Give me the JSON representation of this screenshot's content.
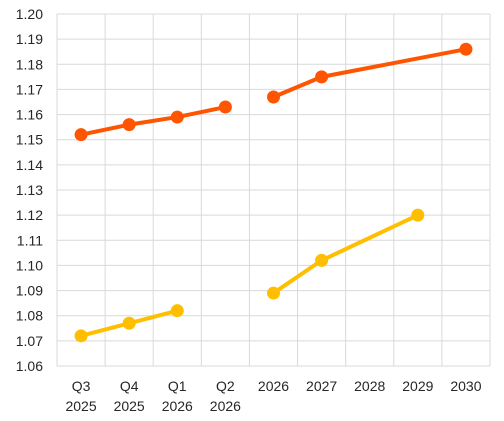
{
  "chart_data": {
    "type": "line",
    "title": "",
    "xlabel": "",
    "ylabel": "",
    "ylim": [
      1.06,
      1.2
    ],
    "grid": true,
    "legend": "none",
    "categories": [
      [
        "Q3",
        "2025"
      ],
      [
        "Q4",
        "2025"
      ],
      [
        "Q1",
        "2026"
      ],
      [
        "Q2",
        "2026"
      ],
      [
        "2026"
      ],
      [
        "2027"
      ],
      [
        "2028"
      ],
      [
        "2029"
      ],
      [
        "2030"
      ]
    ],
    "y_ticks": [
      "1.06",
      "1.07",
      "1.08",
      "1.09",
      "1.10",
      "1.11",
      "1.12",
      "1.13",
      "1.14",
      "1.15",
      "1.16",
      "1.17",
      "1.18",
      "1.19",
      "1.20"
    ],
    "series": [
      {
        "color": "#ff5500",
        "segments": [
          {
            "x": [
              0,
              1,
              2,
              3
            ],
            "y": [
              1.152,
              1.156,
              1.159,
              1.163
            ]
          },
          {
            "x": [
              4,
              5,
              8
            ],
            "y": [
              1.167,
              1.175,
              1.186
            ]
          }
        ]
      },
      {
        "color": "#ffbf00",
        "segments": [
          {
            "x": [
              0,
              1,
              2
            ],
            "y": [
              1.072,
              1.077,
              1.082
            ]
          },
          {
            "x": [
              4,
              5,
              7
            ],
            "y": [
              1.089,
              1.102,
              1.12
            ]
          }
        ]
      }
    ]
  }
}
